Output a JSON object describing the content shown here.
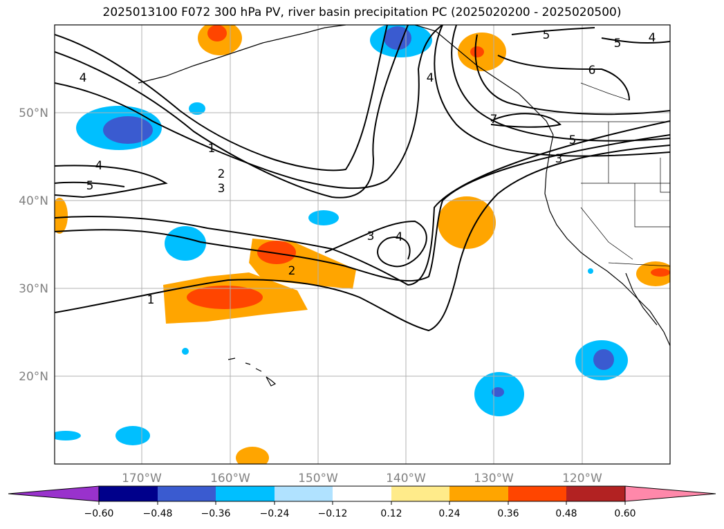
{
  "title": "2025013100 F072 300 hPa PV, river basin precipitation PC (2025020200 - 2025020500)",
  "lon_labels": [
    "170°W",
    "160°W",
    "150°W",
    "140°W",
    "130°W",
    "120°W"
  ],
  "lat_labels": [
    "50°N",
    "40°N",
    "30°N",
    "20°N"
  ],
  "colorbar": {
    "ticks": [
      "−0.60",
      "−0.48",
      "−0.36",
      "−0.24",
      "−0.12",
      "0.12",
      "0.24",
      "0.36",
      "0.48",
      "0.60"
    ],
    "colors": {
      "under": "#9932cc",
      "bins": [
        "#00008b",
        "#3a5bd0",
        "#00bfff",
        "#b0e2ff",
        "#ffffff",
        "#ffeb8a",
        "#ffa500",
        "#ff4500",
        "#b22222"
      ],
      "over": "#ff88aa"
    }
  },
  "contour_labels": [
    "4",
    "4",
    "5",
    "1",
    "2",
    "3",
    "1",
    "2",
    "3",
    "4",
    "3",
    "4",
    "5",
    "5",
    "6",
    "7",
    "5",
    "4"
  ],
  "colors": {
    "grid": "#b0b0b0",
    "axis_text": "#808080",
    "contour": "#000000"
  }
}
